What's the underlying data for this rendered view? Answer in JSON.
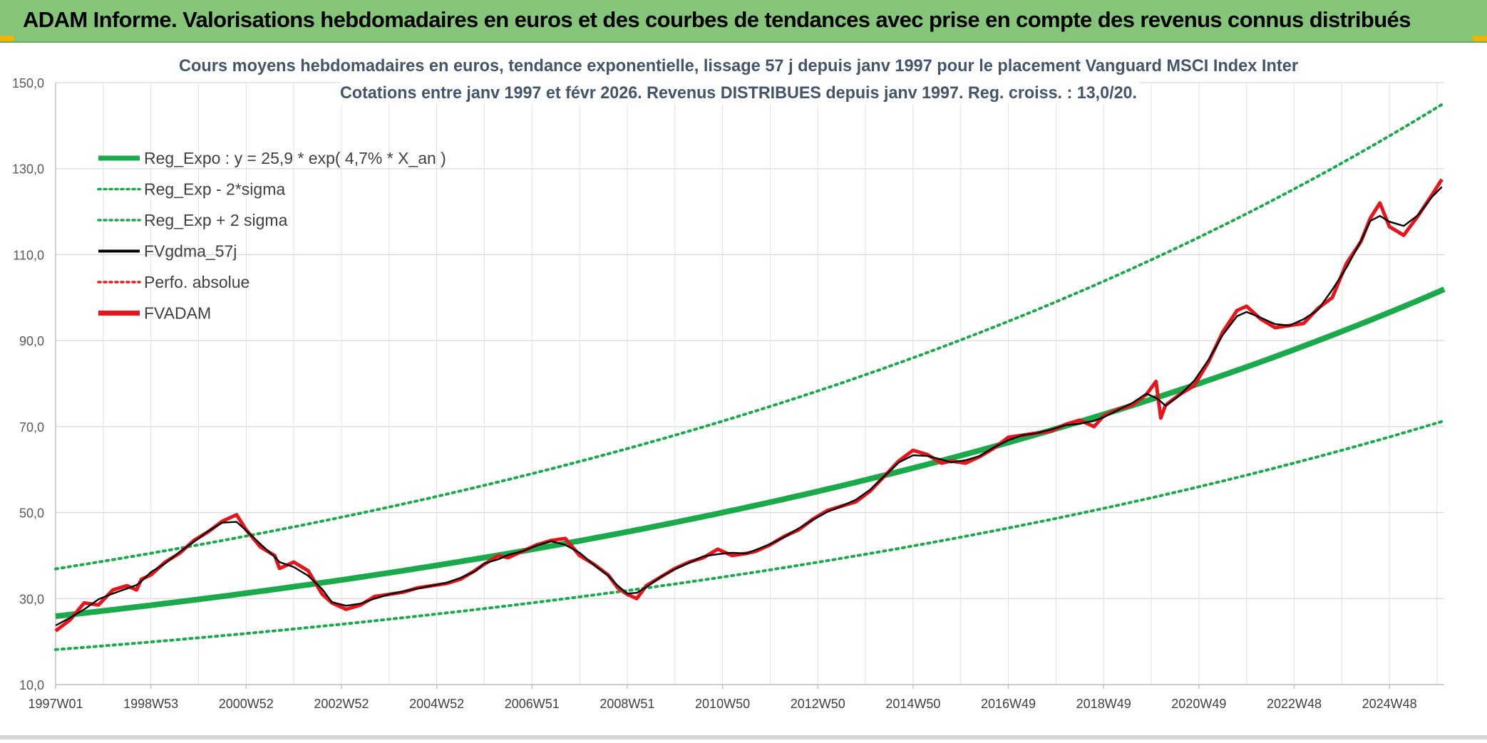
{
  "header": {
    "title": "ADAM Informe. Valorisations hebdomadaires en euros et des courbes de tendances avec prise en compte des revenus connus distribués"
  },
  "chart_data": {
    "type": "line",
    "title_line1": "Cours moyens hebdomadaires en euros, tendance exponentielle, lissage 57 j depuis janv 1997 pour le placement Vanguard MSCI Index Inter",
    "title_line2": "Cotations entre janv 1997 et févr 2026. Revenus DISTRIBUES depuis janv 1997. Reg. croiss. : 13,0/20.",
    "xlabel": "",
    "ylabel": "",
    "xlim": [
      1997.0,
      2026.15
    ],
    "ylim": [
      10,
      150
    ],
    "y_ticks": [
      "150,0",
      "130,0",
      "110,0",
      "90,0",
      "70,0",
      "50,0",
      "30,0",
      "10,0"
    ],
    "y_tick_values": [
      150,
      130,
      110,
      90,
      70,
      50,
      30,
      10
    ],
    "x_tick_labels": [
      "1997W01",
      "1998W53",
      "2000W52",
      "2002W52",
      "2004W52",
      "2006W51",
      "2008W51",
      "2010W50",
      "2012W50",
      "2014W50",
      "2016W49",
      "2018W49",
      "2020W49",
      "2022W48",
      "2024W48"
    ],
    "x_tick_values": [
      1997.0,
      1999.0,
      2001.0,
      2003.0,
      2005.0,
      2007.0,
      2009.0,
      2011.0,
      2013.0,
      2015.0,
      2017.0,
      2019.0,
      2021.0,
      2023.0,
      2025.0
    ],
    "grid": true,
    "legend_position": "top-left",
    "legend": [
      {
        "label": "Reg_Expo : y = 25,9 * exp( 4,7% *  X_an )",
        "color": "#1aaa4b",
        "style": "solid-thick"
      },
      {
        "label": "Reg_Exp - 2*sigma",
        "color": "#1aaa4b",
        "style": "dotted"
      },
      {
        "label": "Reg_Exp + 2 sigma",
        "color": "#1aaa4b",
        "style": "dotted"
      },
      {
        "label": "FVgdma_57j",
        "color": "#000000",
        "style": "solid"
      },
      {
        "label": "Perfo. absolue",
        "color": "#e02020",
        "style": "dotted"
      },
      {
        "label": "FVADAM",
        "color": "#e8141a",
        "style": "solid-thick"
      }
    ],
    "regression": {
      "a": 25.9,
      "rate": 0.047,
      "lower_factor": 0.7,
      "upper_factor": 1.425
    },
    "series_fvadam": {
      "x": [
        1997.0,
        1997.3,
        1997.6,
        1997.9,
        1998.2,
        1998.5,
        1998.7,
        1998.8,
        1999.0,
        1999.3,
        1999.6,
        1999.9,
        2000.2,
        2000.5,
        2000.8,
        2001.0,
        2001.3,
        2001.6,
        2001.7,
        2002.0,
        2002.3,
        2002.6,
        2002.8,
        2003.1,
        2003.4,
        2003.7,
        2004.0,
        2004.3,
        2004.6,
        2004.9,
        2005.2,
        2005.5,
        2005.8,
        2006.0,
        2006.3,
        2006.5,
        2006.8,
        2007.1,
        2007.4,
        2007.7,
        2008.0,
        2008.3,
        2008.6,
        2008.8,
        2009.0,
        2009.2,
        2009.4,
        2009.7,
        2010.0,
        2010.3,
        2010.6,
        2010.9,
        2011.2,
        2011.5,
        2011.7,
        2012.0,
        2012.3,
        2012.6,
        2012.9,
        2013.2,
        2013.5,
        2013.8,
        2014.1,
        2014.4,
        2014.7,
        2015.0,
        2015.3,
        2015.6,
        2015.8,
        2016.1,
        2016.4,
        2016.7,
        2017.0,
        2017.3,
        2017.6,
        2017.9,
        2018.2,
        2018.5,
        2018.8,
        2019.0,
        2019.3,
        2019.6,
        2019.9,
        2020.1,
        2020.2,
        2020.3,
        2020.6,
        2020.9,
        2021.2,
        2021.5,
        2021.8,
        2022.0,
        2022.3,
        2022.6,
        2022.9,
        2023.2,
        2023.5,
        2023.8,
        2024.1,
        2024.4,
        2024.6,
        2024.8,
        2025.0,
        2025.3,
        2025.6,
        2025.9,
        2026.1
      ],
      "y": [
        22.5,
        25.0,
        29.0,
        28.5,
        32.0,
        33.0,
        32.0,
        34.5,
        35.5,
        38.5,
        40.5,
        43.5,
        45.5,
        48.0,
        49.5,
        46.0,
        42.0,
        40.0,
        37.0,
        38.5,
        36.5,
        31.0,
        29.0,
        27.5,
        28.5,
        30.5,
        31.0,
        31.5,
        32.5,
        33.0,
        33.5,
        34.5,
        36.5,
        38.0,
        40.0,
        39.5,
        41.0,
        42.5,
        43.5,
        44.0,
        40.0,
        38.0,
        35.5,
        32.5,
        31.0,
        30.0,
        33.0,
        35.0,
        37.0,
        38.5,
        39.5,
        41.5,
        40.0,
        40.5,
        41.0,
        42.5,
        44.5,
        46.0,
        48.5,
        50.5,
        51.5,
        52.5,
        55.0,
        58.5,
        62.0,
        64.5,
        63.5,
        61.5,
        62.0,
        61.5,
        63.0,
        65.0,
        67.5,
        68.0,
        68.5,
        69.0,
        70.5,
        71.5,
        70.0,
        72.5,
        74.0,
        75.0,
        77.5,
        80.5,
        72.0,
        75.0,
        77.5,
        79.5,
        85.0,
        92.0,
        97.0,
        98.0,
        95.0,
        93.0,
        93.5,
        94.0,
        97.5,
        100.0,
        108.0,
        113.0,
        118.5,
        122.0,
        116.5,
        114.5,
        119.0,
        124.0,
        127.5
      ]
    }
  }
}
